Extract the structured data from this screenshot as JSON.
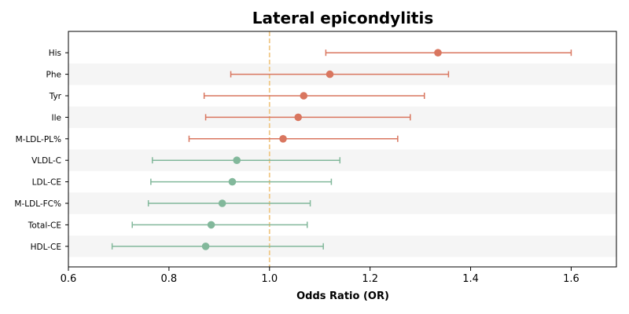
{
  "chart_data": {
    "type": "forest",
    "title": "Lateral epicondylitis",
    "xlabel": "Odds Ratio (OR)",
    "ylabel": "",
    "xlim": [
      0.6,
      1.69
    ],
    "xticks": [
      0.6,
      0.8,
      1.0,
      1.2,
      1.4,
      1.6
    ],
    "reference_line": 1.0,
    "row_banding": true,
    "colors": {
      "risk": "#d9765f",
      "protective": "#82b89b",
      "reference": "#f0c987",
      "band": "#f5f5f5"
    },
    "rows": [
      {
        "label": "His",
        "or": 1.335,
        "lower": 1.112,
        "upper": 1.6,
        "group": "risk"
      },
      {
        "label": "Phe",
        "or": 1.12,
        "lower": 0.923,
        "upper": 1.356,
        "group": "risk"
      },
      {
        "label": "Tyr",
        "or": 1.068,
        "lower": 0.87,
        "upper": 1.308,
        "group": "risk"
      },
      {
        "label": "Ile",
        "or": 1.057,
        "lower": 0.873,
        "upper": 1.28,
        "group": "risk"
      },
      {
        "label": "M-LDL-PL%",
        "or": 1.027,
        "lower": 0.84,
        "upper": 1.255,
        "group": "risk"
      },
      {
        "label": "VLDL-C",
        "or": 0.935,
        "lower": 0.767,
        "upper": 1.14,
        "group": "protective"
      },
      {
        "label": "LDL-CE",
        "or": 0.926,
        "lower": 0.764,
        "upper": 1.123,
        "group": "protective"
      },
      {
        "label": "M-LDL-FC%",
        "or": 0.906,
        "lower": 0.759,
        "upper": 1.081,
        "group": "protective"
      },
      {
        "label": "Total-CE",
        "or": 0.884,
        "lower": 0.727,
        "upper": 1.075,
        "group": "protective"
      },
      {
        "label": "HDL-CE",
        "or": 0.873,
        "lower": 0.687,
        "upper": 1.107,
        "group": "protective"
      }
    ]
  }
}
